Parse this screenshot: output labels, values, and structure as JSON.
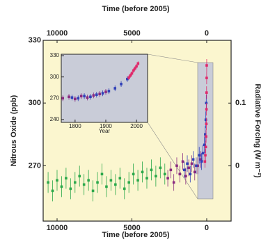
{
  "chart_data": [
    {
      "type": "scatter",
      "xlabel": "Time (before 2005)",
      "xlabel_top": "Time (before 2005)",
      "ylabel": "Nitrous Oxide (ppb)",
      "y2label": "Radiative Forcing (W m⁻²)",
      "xlim": [
        10930,
        -1630
      ],
      "xticks": [
        10000,
        5000,
        0
      ],
      "ylim": [
        243.5,
        330
      ],
      "yticks": [
        270,
        300,
        330
      ],
      "y2lim": [
        -0.088,
        0.2
      ],
      "y2ticks": [
        0,
        0.1
      ],
      "series": [
        {
          "color": "#2aa84a",
          "x": [
            10600,
            10300,
            10000,
            9700,
            9400,
            9100,
            8800,
            8500,
            8200,
            7900,
            7600,
            7300,
            7000,
            6700,
            6400,
            6100,
            5800,
            5500,
            5200,
            4900,
            4600,
            4300,
            4000,
            3700,
            3400,
            3100,
            2800
          ],
          "values": [
            262,
            258,
            263,
            260,
            264,
            259,
            262,
            265,
            261,
            263,
            258,
            262,
            266,
            260,
            263,
            261,
            264,
            259,
            262,
            266,
            263,
            267,
            264,
            268,
            265,
            269,
            266
          ],
          "errors": [
            5,
            5,
            5,
            5,
            5,
            5,
            5,
            5,
            5,
            5,
            5,
            5,
            5,
            5,
            5,
            5,
            5,
            5,
            5,
            5,
            5,
            5,
            5,
            5,
            5,
            5,
            5
          ]
        },
        {
          "color": "#8a2a80",
          "x": [
            2600,
            2400,
            2200,
            2000,
            1800,
            1600,
            1400,
            1200,
            1000,
            800,
            600,
            400
          ],
          "values": [
            264,
            268,
            262,
            270,
            266,
            272,
            265,
            269,
            271,
            267,
            270,
            273
          ],
          "errors": [
            4,
            4,
            4,
            4,
            4,
            4,
            4,
            4,
            4,
            4,
            4,
            4
          ]
        },
        {
          "color": "#3040b8",
          "x": [
            1500,
            1300,
            1100,
            900,
            700,
            500,
            350,
            250,
            150,
            100,
            60,
            30
          ],
          "values": [
            268,
            271,
            266,
            273,
            270,
            275,
            272,
            276,
            280,
            285,
            292,
            300
          ],
          "errors": [
            4,
            4,
            4,
            4,
            4,
            4,
            4,
            4,
            4,
            4,
            4,
            4
          ]
        },
        {
          "color": "#e0286a",
          "x": [
            120,
            90,
            60,
            40,
            25,
            15,
            8,
            3,
            0
          ],
          "values": [
            272,
            275,
            279,
            284,
            290,
            297,
            305,
            312,
            318
          ],
          "errors": [
            3,
            3,
            3,
            3,
            3,
            3,
            3,
            3,
            3
          ]
        }
      ]
    },
    {
      "type": "scatter",
      "xlabel": "Year",
      "xlim": [
        1755,
        2036
      ],
      "xticks": [
        1800,
        1900,
        2000
      ],
      "ylim": [
        236,
        332
      ],
      "yticks": [
        240,
        270,
        300,
        330
      ],
      "series": [
        {
          "color": "#8a2a80",
          "x": [
            1760,
            1780,
            1800,
            1820,
            1840,
            1860,
            1880,
            1900
          ],
          "values": [
            270,
            272,
            269,
            273,
            271,
            274,
            276,
            279
          ],
          "errors": [
            4,
            4,
            4,
            4,
            4,
            4,
            4,
            4
          ]
        },
        {
          "color": "#3040b8",
          "x": [
            1790,
            1810,
            1830,
            1850,
            1870,
            1890,
            1910,
            1930,
            1950,
            1970
          ],
          "values": [
            271,
            270,
            273,
            272,
            275,
            277,
            280,
            284,
            290,
            297
          ],
          "errors": [
            4,
            4,
            4,
            4,
            4,
            4,
            4,
            4,
            4,
            4
          ]
        },
        {
          "color": "#e0286a",
          "x": [
            1975,
            1980,
            1985,
            1990,
            1995,
            2000,
            2005
          ],
          "values": [
            299,
            302,
            305,
            309,
            312,
            315,
            319
          ],
          "errors": [
            3,
            3,
            3,
            3,
            3,
            3,
            3
          ]
        }
      ]
    }
  ]
}
